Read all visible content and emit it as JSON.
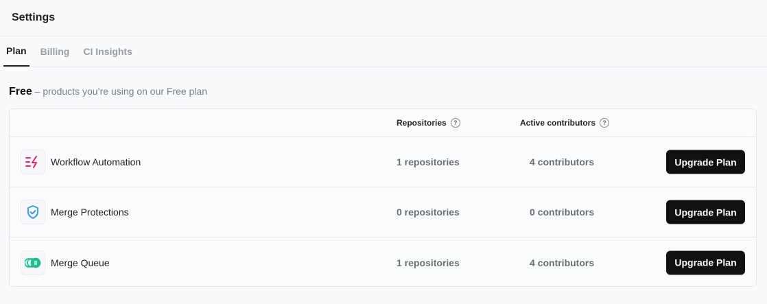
{
  "header": {
    "title": "Settings"
  },
  "tabs": [
    {
      "label": "Plan",
      "active": true
    },
    {
      "label": "Billing"
    },
    {
      "label": "CI Insights"
    }
  ],
  "plan": {
    "name": "Free",
    "description": "– products you’re using on our Free plan"
  },
  "table": {
    "columns": {
      "repositories": "Repositories",
      "contributors": "Active contributors"
    },
    "rows": [
      {
        "name": "Workflow Automation",
        "icon": "lightning-icon",
        "icon_color": "#e6236f",
        "repositories": "1 repositories",
        "contributors": "4 contributors",
        "action": "Upgrade Plan"
      },
      {
        "name": "Merge Protections",
        "icon": "shield-check-icon",
        "icon_color": "#3b9be0",
        "repositories": "0 repositories",
        "contributors": "0 contributors",
        "action": "Upgrade Plan"
      },
      {
        "name": "Merge Queue",
        "icon": "queue-icon",
        "icon_color": "#1fbf8f",
        "repositories": "1 repositories",
        "contributors": "4 contributors",
        "action": "Upgrade Plan"
      }
    ]
  }
}
